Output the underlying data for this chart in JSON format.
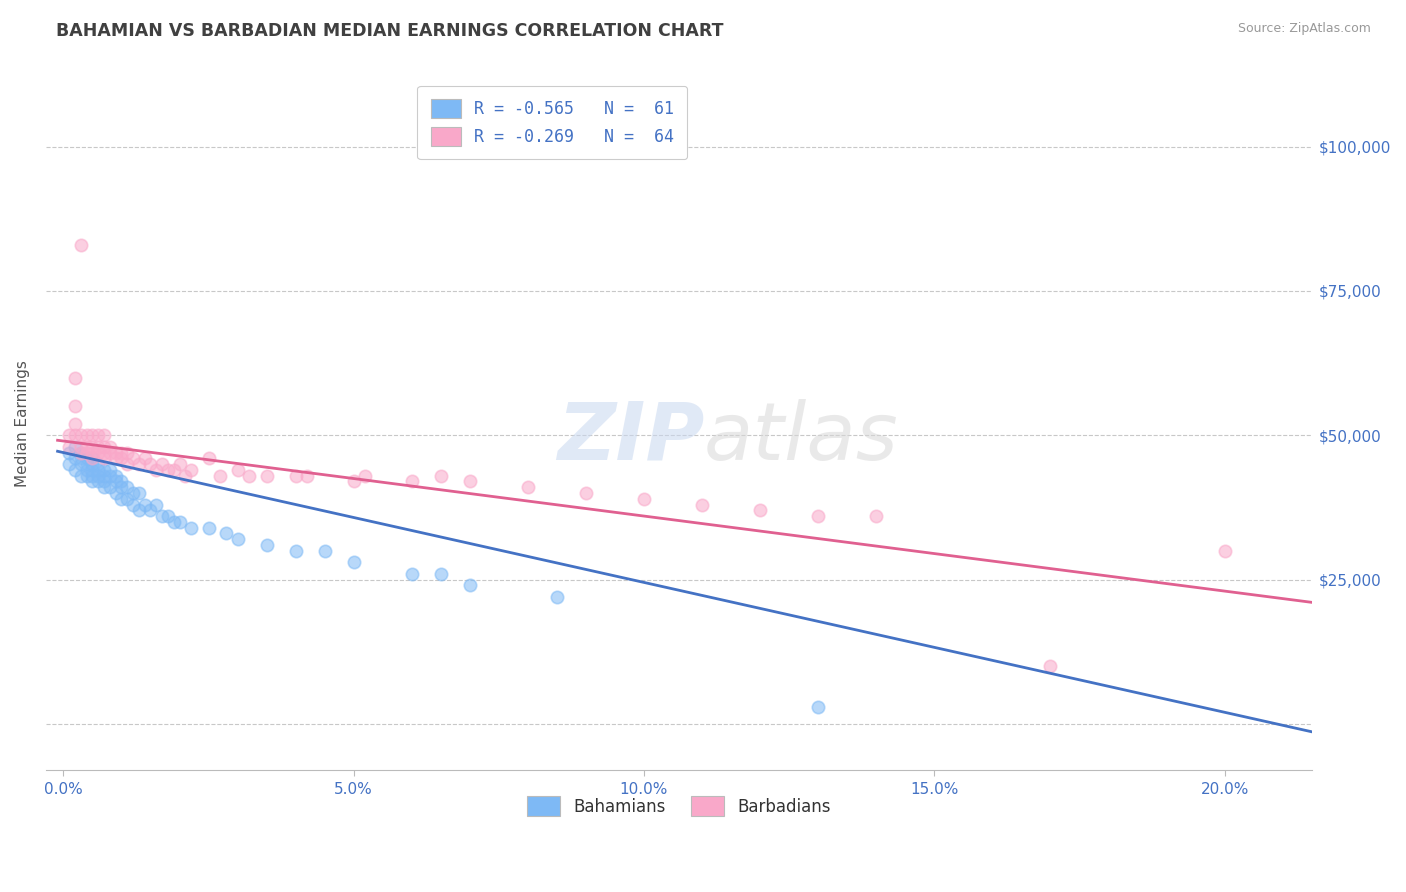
{
  "title": "BAHAMIAN VS BARBADIAN MEDIAN EARNINGS CORRELATION CHART",
  "source": "Source: ZipAtlas.com",
  "ylabel_label": "Median Earnings",
  "x_ticks": [
    0.0,
    0.05,
    0.1,
    0.15,
    0.2
  ],
  "x_tick_labels": [
    "0.0%",
    "5.0%",
    "10.0%",
    "15.0%",
    "20.0%"
  ],
  "y_ticks": [
    0,
    25000,
    50000,
    75000,
    100000
  ],
  "y_tick_labels": [
    "",
    "$25,000",
    "$50,000",
    "$75,000",
    "$100,000"
  ],
  "xlim": [
    -0.003,
    0.215
  ],
  "ylim": [
    -8000,
    112000
  ],
  "bahamian_color": "#7EB9F5",
  "barbadian_color": "#F9A8C9",
  "bahamian_line_color": "#4472C4",
  "barbadian_line_color": "#E06090",
  "background_color": "#FFFFFF",
  "grid_color": "#C8C8C8",
  "title_color": "#404040",
  "axis_label_color": "#555555",
  "tick_color": "#4472C4",
  "bahamians_x": [
    0.001,
    0.001,
    0.002,
    0.002,
    0.002,
    0.003,
    0.003,
    0.003,
    0.003,
    0.004,
    0.004,
    0.004,
    0.004,
    0.005,
    0.005,
    0.005,
    0.005,
    0.005,
    0.006,
    0.006,
    0.006,
    0.006,
    0.007,
    0.007,
    0.007,
    0.007,
    0.008,
    0.008,
    0.008,
    0.009,
    0.009,
    0.009,
    0.01,
    0.01,
    0.01,
    0.011,
    0.011,
    0.012,
    0.012,
    0.013,
    0.013,
    0.014,
    0.015,
    0.016,
    0.017,
    0.018,
    0.019,
    0.02,
    0.022,
    0.025,
    0.028,
    0.03,
    0.035,
    0.04,
    0.045,
    0.05,
    0.06,
    0.065,
    0.07,
    0.085,
    0.13
  ],
  "bahamians_y": [
    47000,
    45000,
    48000,
    46000,
    44000,
    47000,
    45000,
    46000,
    43000,
    46000,
    44000,
    43000,
    45000,
    46000,
    44000,
    43000,
    45000,
    42000,
    45000,
    44000,
    43000,
    42000,
    44000,
    43000,
    42000,
    41000,
    44000,
    43000,
    41000,
    43000,
    42000,
    40000,
    42000,
    41000,
    39000,
    41000,
    39000,
    40000,
    38000,
    40000,
    37000,
    38000,
    37000,
    38000,
    36000,
    36000,
    35000,
    35000,
    34000,
    34000,
    33000,
    32000,
    31000,
    30000,
    30000,
    28000,
    26000,
    26000,
    24000,
    22000,
    3000
  ],
  "barbadians_x": [
    0.001,
    0.001,
    0.002,
    0.002,
    0.002,
    0.002,
    0.003,
    0.003,
    0.003,
    0.003,
    0.004,
    0.004,
    0.004,
    0.005,
    0.005,
    0.005,
    0.005,
    0.006,
    0.006,
    0.006,
    0.007,
    0.007,
    0.007,
    0.007,
    0.008,
    0.008,
    0.009,
    0.009,
    0.01,
    0.01,
    0.011,
    0.011,
    0.012,
    0.013,
    0.014,
    0.015,
    0.016,
    0.017,
    0.018,
    0.019,
    0.02,
    0.021,
    0.022,
    0.025,
    0.027,
    0.03,
    0.032,
    0.035,
    0.04,
    0.042,
    0.05,
    0.052,
    0.06,
    0.065,
    0.07,
    0.08,
    0.09,
    0.1,
    0.11,
    0.12,
    0.13,
    0.14,
    0.17,
    0.2
  ],
  "barbadians_y": [
    50000,
    48000,
    52000,
    50000,
    55000,
    60000,
    50000,
    48000,
    47000,
    83000,
    50000,
    48000,
    47000,
    50000,
    48000,
    47000,
    46000,
    50000,
    48000,
    47000,
    50000,
    48000,
    47000,
    46000,
    48000,
    47000,
    47000,
    46000,
    47000,
    46000,
    47000,
    45000,
    46000,
    45000,
    46000,
    45000,
    44000,
    45000,
    44000,
    44000,
    45000,
    43000,
    44000,
    46000,
    43000,
    44000,
    43000,
    43000,
    43000,
    43000,
    42000,
    43000,
    42000,
    43000,
    42000,
    41000,
    40000,
    39000,
    38000,
    37000,
    36000,
    36000,
    10000,
    30000
  ]
}
